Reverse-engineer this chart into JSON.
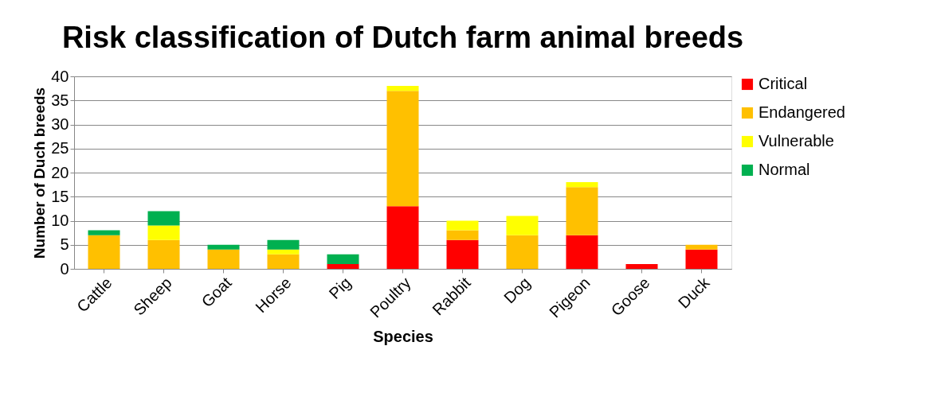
{
  "chart_data": {
    "type": "bar",
    "title": "Risk classification of Dutch farm animal breeds",
    "xlabel": "Species",
    "ylabel": "Number of Duch breeds",
    "categories": [
      "Cattle",
      "Sheep",
      "Goat",
      "Horse",
      "Pig",
      "Poultry",
      "Rabbit",
      "Dog",
      "Pigeon",
      "Goose",
      "Duck"
    ],
    "stacked": true,
    "series": [
      {
        "name": "Critical",
        "color": "#ff0000",
        "values": [
          0,
          0,
          0,
          0,
          1,
          13,
          6,
          0,
          7,
          1,
          4
        ]
      },
      {
        "name": "Endangered",
        "color": "#ffc000",
        "values": [
          7,
          6,
          4,
          3,
          0,
          24,
          2,
          7,
          10,
          0,
          1
        ]
      },
      {
        "name": "Vulnerable",
        "color": "#ffff00",
        "values": [
          0,
          3,
          0,
          1,
          0,
          1,
          2,
          4,
          1,
          0,
          0
        ]
      },
      {
        "name": "Normal",
        "color": "#00b050",
        "values": [
          1,
          3,
          1,
          2,
          2,
          0,
          0,
          0,
          0,
          0,
          0
        ]
      }
    ],
    "ylim": [
      0,
      40
    ],
    "yticks": [
      0,
      5,
      10,
      15,
      20,
      25,
      30,
      35,
      40
    ],
    "grid": "y",
    "legend": "right"
  }
}
